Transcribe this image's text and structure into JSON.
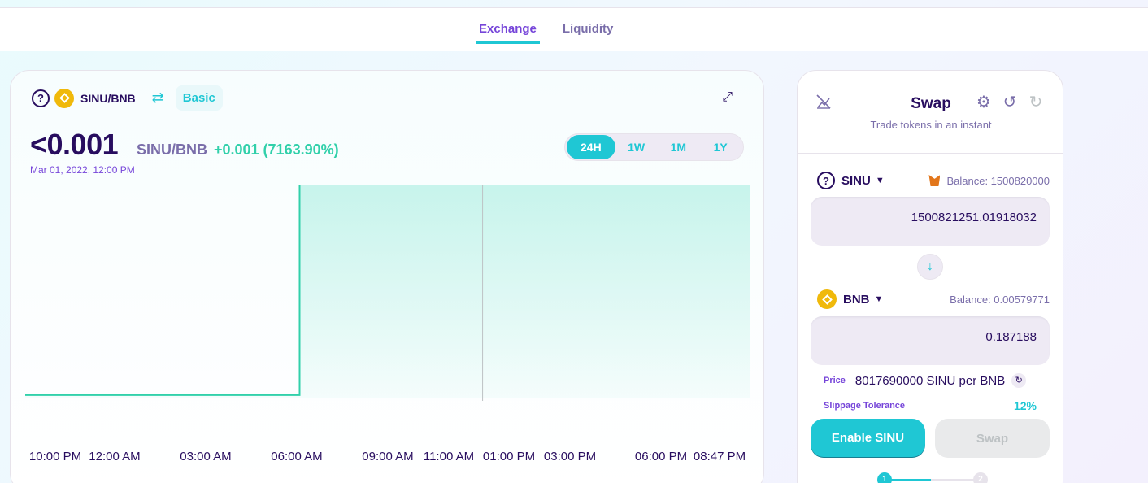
{
  "tabs": [
    {
      "label": "Exchange",
      "active": true
    },
    {
      "label": "Liquidity",
      "active": false
    }
  ],
  "chart_panel": {
    "pair": "SINU/BNB",
    "mode_label": "Basic",
    "price": "<0.001",
    "price_pair": "SINU/BNB",
    "change": "+0.001 (7163.90%)",
    "date": "Mar 01, 2022, 12:00 PM",
    "ranges": [
      "24H",
      "1W",
      "1M",
      "1Y"
    ],
    "active_range": "24H",
    "icons": {
      "help": "question-circle-icon",
      "token": "bnb-icon",
      "switch": "swap-arrows-icon",
      "expand": "expand-icon"
    }
  },
  "chart_data": {
    "type": "area",
    "x_tick_labels": [
      "10:00 PM",
      "12:00 AM",
      "03:00 AM",
      "06:00 AM",
      "09:00 AM",
      "11:00 AM",
      "01:00 PM",
      "03:00 PM",
      "06:00 PM",
      "08:47 PM"
    ],
    "series": [
      {
        "points": [
          {
            "t": "09:00 PM",
            "v": 2e-05
          },
          {
            "t": "12:00 AM",
            "v": 2e-05
          },
          {
            "t": "03:00 AM",
            "v": 2e-05
          },
          {
            "t": "06:00 AM",
            "v": 2e-05
          },
          {
            "t": "06:00 AM",
            "v": 0.0014
          },
          {
            "t": "07:00 AM",
            "v": 0.00139
          },
          {
            "t": "09:00 AM",
            "v": 0.001385
          },
          {
            "t": "10:00 AM",
            "v": 0.001385
          },
          {
            "t": "11:30 AM",
            "v": 0.001385
          },
          {
            "t": "12:00 PM",
            "v": 0.00138
          },
          {
            "t": "01:00 PM",
            "v": 0.00131
          },
          {
            "t": "02:00 PM",
            "v": 0.00131
          },
          {
            "t": "04:00 PM",
            "v": 0.0013
          },
          {
            "t": "06:00 PM",
            "v": 0.0013
          },
          {
            "t": "07:00 PM",
            "v": 0.00129
          },
          {
            "t": "08:47 PM",
            "v": 0.00129
          }
        ]
      }
    ],
    "hover_index": 9,
    "line_color": "#31d0aa",
    "fill_color": "#c3f3ea",
    "grid": false
  },
  "swap": {
    "title": "Swap",
    "subtitle": "Trade tokens in an instant",
    "from": {
      "token": "SINU",
      "balance": "Balance: 1500820000",
      "amount": "1500821251.01918032"
    },
    "to": {
      "token": "BNB",
      "balance": "Balance: 0.00579771",
      "amount": "0.187188"
    },
    "price_label": "Price",
    "price_value": "8017690000 SINU per BNB",
    "slippage_label": "Slippage Tolerance",
    "slippage_value": "12%",
    "enable_button": "Enable SINU",
    "swap_button": "Swap",
    "steps": [
      "1",
      "2"
    ],
    "accent": "#1fc7d4",
    "icons": {
      "chart_toggle": "chart-disabled-icon",
      "settings": "gear-icon",
      "history": "history-icon",
      "refresh": "refresh-icon",
      "arrow": "arrow-down-icon",
      "wallet": "metamask-fox-icon"
    }
  }
}
